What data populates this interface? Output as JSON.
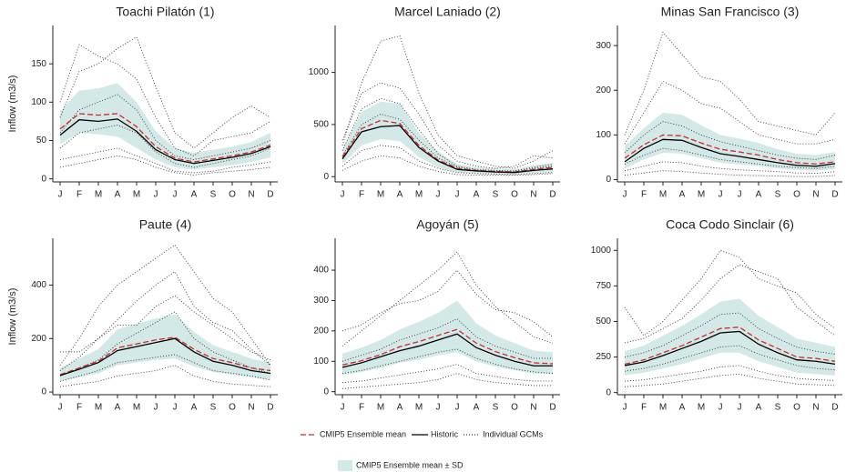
{
  "legend": [
    {
      "name": "CMIP5 Ensemble mean",
      "color": "#d62728",
      "style": "dashed"
    },
    {
      "name": "Historic",
      "color": "#000000",
      "style": "solid"
    },
    {
      "name": "Individual GCMs",
      "color": "#333333",
      "style": "dotted"
    },
    {
      "name": "CMIP5 Ensemble mean ± SD",
      "color": "#d3e9e7",
      "style": "area"
    }
  ],
  "chart_data": [
    {
      "type": "line",
      "title": "Toachi Pilatón (1)",
      "ylabel": "Inflow (m3/s)",
      "categories": [
        "J",
        "F",
        "M",
        "A",
        "M",
        "J",
        "J",
        "A",
        "S",
        "O",
        "N",
        "D"
      ],
      "ylim": [
        -4,
        200
      ],
      "yticks": [
        0,
        50,
        100,
        150
      ],
      "mean": [
        65,
        85,
        83,
        85,
        68,
        42,
        27,
        22,
        26,
        30,
        35,
        44
      ],
      "historic": [
        57,
        77,
        75,
        78,
        62,
        38,
        25,
        20,
        24,
        28,
        33,
        42
      ],
      "sd_lower": [
        45,
        60,
        58,
        55,
        40,
        25,
        15,
        12,
        15,
        18,
        22,
        28
      ],
      "sd_upper": [
        88,
        115,
        118,
        125,
        100,
        62,
        40,
        34,
        38,
        42,
        48,
        60
      ],
      "gcms": [
        [
          80,
          140,
          150,
          170,
          185,
          120,
          60,
          40,
          60,
          80,
          95,
          80
        ],
        [
          40,
          60,
          65,
          70,
          60,
          35,
          20,
          15,
          20,
          25,
          30,
          40
        ],
        [
          25,
          30,
          35,
          40,
          30,
          20,
          10,
          8,
          10,
          15,
          18,
          22
        ],
        [
          100,
          175,
          160,
          150,
          130,
          80,
          40,
          30,
          50,
          55,
          60,
          75
        ],
        [
          60,
          90,
          100,
          110,
          90,
          50,
          30,
          25,
          30,
          35,
          40,
          50
        ],
        [
          15,
          20,
          25,
          30,
          25,
          15,
          8,
          5,
          8,
          10,
          12,
          15
        ]
      ]
    },
    {
      "type": "line",
      "title": "Marcel Laniado (2)",
      "categories": [
        "J",
        "F",
        "M",
        "A",
        "M",
        "J",
        "J",
        "A",
        "S",
        "O",
        "N",
        "D"
      ],
      "ylim": [
        -50,
        1450
      ],
      "yticks": [
        0,
        500,
        1000
      ],
      "mean": [
        190,
        460,
        540,
        510,
        300,
        160,
        80,
        60,
        50,
        45,
        70,
        90
      ],
      "historic": [
        170,
        430,
        480,
        490,
        280,
        150,
        70,
        55,
        45,
        40,
        60,
        75
      ],
      "sd_lower": [
        120,
        300,
        360,
        340,
        190,
        90,
        40,
        30,
        25,
        25,
        35,
        45
      ],
      "sd_upper": [
        260,
        620,
        720,
        700,
        420,
        240,
        120,
        90,
        80,
        70,
        110,
        130
      ],
      "gcms": [
        [
          300,
          900,
          1300,
          1350,
          800,
          400,
          200,
          150,
          100,
          80,
          150,
          250
        ],
        [
          200,
          500,
          600,
          550,
          350,
          180,
          90,
          60,
          50,
          50,
          80,
          100
        ],
        [
          100,
          250,
          300,
          280,
          150,
          80,
          40,
          30,
          25,
          20,
          30,
          40
        ],
        [
          350,
          800,
          900,
          850,
          600,
          300,
          150,
          100,
          80,
          100,
          200,
          180
        ],
        [
          60,
          150,
          200,
          180,
          100,
          50,
          20,
          15,
          15,
          15,
          20,
          30
        ],
        [
          250,
          650,
          750,
          700,
          450,
          220,
          100,
          70,
          60,
          55,
          90,
          120
        ]
      ]
    },
    {
      "type": "line",
      "title": "Minas San Francisco (3)",
      "categories": [
        "J",
        "F",
        "M",
        "A",
        "M",
        "J",
        "J",
        "A",
        "S",
        "O",
        "N",
        "D"
      ],
      "ylim": [
        -5,
        345
      ],
      "yticks": [
        0,
        100,
        200,
        300
      ],
      "mean": [
        48,
        78,
        100,
        98,
        82,
        68,
        62,
        55,
        45,
        38,
        35,
        40
      ],
      "historic": [
        40,
        70,
        90,
        88,
        72,
        58,
        52,
        45,
        38,
        32,
        30,
        36
      ],
      "sd_lower": [
        25,
        45,
        60,
        58,
        48,
        38,
        34,
        30,
        25,
        22,
        20,
        24
      ],
      "sd_upper": [
        75,
        115,
        150,
        145,
        122,
        100,
        92,
        82,
        68,
        58,
        55,
        62
      ],
      "gcms": [
        [
          100,
          200,
          330,
          280,
          230,
          220,
          180,
          130,
          120,
          110,
          100,
          150
        ],
        [
          60,
          100,
          130,
          120,
          100,
          85,
          75,
          65,
          55,
          48,
          45,
          55
        ],
        [
          20,
          30,
          40,
          38,
          30,
          25,
          22,
          20,
          18,
          15,
          14,
          18
        ],
        [
          80,
          150,
          220,
          200,
          170,
          160,
          130,
          100,
          90,
          80,
          80,
          90
        ],
        [
          35,
          55,
          70,
          65,
          55,
          45,
          40,
          35,
          30,
          27,
          25,
          30
        ],
        [
          10,
          15,
          20,
          18,
          15,
          12,
          10,
          9,
          8,
          7,
          7,
          9
        ]
      ]
    },
    {
      "type": "line",
      "title": "Paute (4)",
      "ylabel": "Inflow (m3/s)",
      "categories": [
        "J",
        "F",
        "M",
        "A",
        "M",
        "J",
        "J",
        "A",
        "S",
        "O",
        "N",
        "D"
      ],
      "ylim": [
        -10,
        575
      ],
      "yticks": [
        0,
        200,
        400
      ],
      "mean": [
        65,
        90,
        115,
        165,
        180,
        195,
        205,
        160,
        125,
        110,
        90,
        80
      ],
      "historic": [
        62,
        85,
        110,
        155,
        170,
        185,
        200,
        150,
        115,
        100,
        80,
        70
      ],
      "sd_lower": [
        40,
        55,
        70,
        100,
        110,
        120,
        125,
        95,
        75,
        65,
        55,
        45
      ],
      "sd_upper": [
        90,
        125,
        160,
        235,
        255,
        275,
        290,
        225,
        175,
        150,
        125,
        110
      ],
      "gcms": [
        [
          100,
          200,
          320,
          400,
          450,
          500,
          550,
          450,
          350,
          300,
          200,
          100
        ],
        [
          60,
          90,
          120,
          180,
          220,
          260,
          300,
          200,
          150,
          120,
          90,
          70
        ],
        [
          20,
          30,
          40,
          60,
          70,
          80,
          100,
          60,
          40,
          30,
          25,
          20
        ],
        [
          80,
          130,
          200,
          270,
          340,
          400,
          450,
          320,
          260,
          230,
          160,
          100
        ],
        [
          40,
          60,
          80,
          110,
          120,
          130,
          140,
          110,
          80,
          70,
          60,
          45
        ],
        [
          150,
          150,
          200,
          250,
          250,
          320,
          360,
          300,
          250,
          200,
          150,
          120
        ]
      ]
    },
    {
      "type": "line",
      "title": "Agoyán (5)",
      "categories": [
        "J",
        "F",
        "M",
        "A",
        "M",
        "J",
        "J",
        "A",
        "S",
        "O",
        "N",
        "D"
      ],
      "ylim": [
        -10,
        505
      ],
      "yticks": [
        0,
        100,
        200,
        300,
        400
      ],
      "mean": [
        88,
        102,
        122,
        148,
        165,
        185,
        205,
        160,
        132,
        112,
        95,
        92
      ],
      "historic": [
        80,
        95,
        115,
        135,
        150,
        170,
        190,
        145,
        120,
        100,
        85,
        85
      ],
      "sd_lower": [
        55,
        65,
        78,
        95,
        105,
        120,
        130,
        100,
        82,
        70,
        60,
        58
      ],
      "sd_upper": [
        125,
        145,
        170,
        205,
        230,
        260,
        300,
        225,
        185,
        160,
        135,
        130
      ],
      "gcms": [
        [
          150,
          200,
          250,
          300,
          350,
          400,
          460,
          350,
          280,
          230,
          180,
          160
        ],
        [
          100,
          120,
          140,
          170,
          190,
          210,
          240,
          180,
          150,
          130,
          110,
          110
        ],
        [
          30,
          35,
          45,
          55,
          65,
          75,
          90,
          60,
          50,
          40,
          35,
          35
        ],
        [
          200,
          220,
          260,
          290,
          300,
          330,
          400,
          320,
          270,
          260,
          230,
          180
        ],
        [
          60,
          70,
          85,
          100,
          115,
          130,
          140,
          110,
          90,
          75,
          65,
          60
        ],
        [
          10,
          15,
          20,
          25,
          30,
          40,
          60,
          40,
          30,
          25,
          20,
          20
        ]
      ]
    },
    {
      "type": "line",
      "title": "Coca Codo Sinclair (6)",
      "categories": [
        "J",
        "F",
        "M",
        "A",
        "M",
        "J",
        "J",
        "A",
        "S",
        "O",
        "N",
        "D"
      ],
      "ylim": [
        -15,
        1085
      ],
      "yticks": [
        0,
        250,
        500,
        750,
        1000
      ],
      "mean": [
        200,
        230,
        280,
        330,
        390,
        450,
        460,
        370,
        310,
        250,
        240,
        220
      ],
      "historic": [
        190,
        215,
        260,
        310,
        360,
        420,
        430,
        340,
        280,
        230,
        220,
        200
      ],
      "sd_lower": [
        120,
        140,
        170,
        200,
        240,
        280,
        280,
        220,
        180,
        140,
        130,
        120
      ],
      "sd_upper": [
        290,
        330,
        400,
        470,
        550,
        640,
        660,
        540,
        460,
        380,
        350,
        320
      ],
      "gcms": [
        [
          600,
          400,
          500,
          650,
          800,
          1000,
          950,
          800,
          750,
          700,
          550,
          450
        ],
        [
          250,
          280,
          330,
          400,
          470,
          550,
          560,
          450,
          380,
          320,
          290,
          270
        ],
        [
          80,
          90,
          110,
          130,
          150,
          180,
          190,
          150,
          120,
          100,
          90,
          85
        ],
        [
          350,
          380,
          450,
          520,
          650,
          800,
          900,
          850,
          800,
          600,
          500,
          400
        ],
        [
          150,
          170,
          200,
          240,
          280,
          320,
          330,
          270,
          230,
          190,
          170,
          160
        ],
        [
          40,
          50,
          60,
          80,
          100,
          120,
          130,
          100,
          80,
          60,
          55,
          50
        ]
      ]
    }
  ]
}
